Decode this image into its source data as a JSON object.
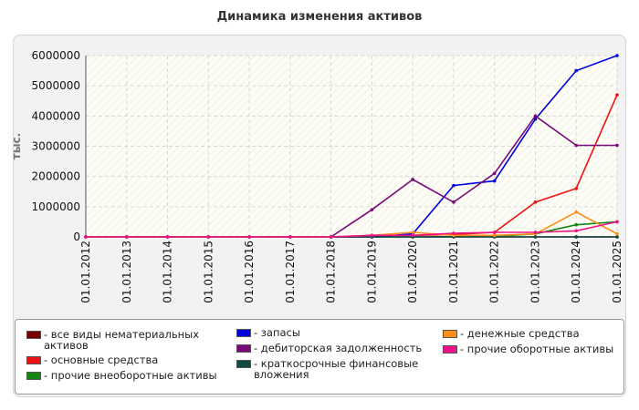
{
  "chart_data": {
    "type": "line",
    "title": "Динамика изменения активов",
    "ylabel": "тыс.",
    "xlabel": "",
    "x": [
      "01.01.2012",
      "01.01.2013",
      "01.01.2014",
      "01.01.2015",
      "01.01.2016",
      "01.01.2017",
      "01.01.2018",
      "01.01.2019",
      "01.01.2020",
      "01.01.2021",
      "01.01.2022",
      "01.01.2023",
      "01.01.2024",
      "01.01.2025"
    ],
    "ylim": [
      0,
      6000000
    ],
    "yticks": [
      "0",
      "1000000",
      "2000000",
      "3000000",
      "4000000",
      "5000000",
      "6000000"
    ],
    "grid": true,
    "legend_position": "bottom",
    "series": [
      {
        "name": "- все виды нематериальных активов",
        "color": "#7a0000",
        "values": [
          0,
          0,
          0,
          0,
          0,
          0,
          0,
          0,
          0,
          0,
          0,
          0,
          0,
          0
        ]
      },
      {
        "name": "- основные средства",
        "color": "#ee1111",
        "values": [
          0,
          0,
          0,
          0,
          0,
          0,
          0,
          30000,
          50000,
          80000,
          150000,
          1150000,
          1600000,
          4700000
        ]
      },
      {
        "name": "- прочие внеоборотные активы",
        "color": "#118811",
        "values": [
          0,
          0,
          0,
          0,
          0,
          0,
          0,
          0,
          0,
          10000,
          20000,
          100000,
          400000,
          500000
        ]
      },
      {
        "name": "- запасы",
        "color": "#0000dd",
        "values": [
          0,
          0,
          0,
          0,
          0,
          0,
          0,
          0,
          100000,
          1700000,
          1850000,
          3900000,
          5500000,
          6000000
        ]
      },
      {
        "name": "- дебиторская задолженность",
        "color": "#7a0a7a",
        "values": [
          0,
          0,
          0,
          0,
          0,
          0,
          0,
          900000,
          1900000,
          1150000,
          2100000,
          4000000,
          3030000,
          3030000
        ]
      },
      {
        "name": "- краткосрочные финансовые вложения",
        "color": "#0f4a45",
        "values": [
          0,
          0,
          0,
          0,
          0,
          0,
          0,
          0,
          0,
          0,
          0,
          0,
          0,
          0
        ]
      },
      {
        "name": "- денежные средства",
        "color": "#ff8c1a",
        "values": [
          0,
          0,
          0,
          0,
          0,
          0,
          0,
          50000,
          150000,
          50000,
          50000,
          100000,
          820000,
          100000
        ]
      },
      {
        "name": "- прочие оборотные активы",
        "color": "#ee1188",
        "values": [
          0,
          0,
          0,
          0,
          0,
          0,
          0,
          50000,
          50000,
          120000,
          150000,
          150000,
          200000,
          500000
        ]
      }
    ]
  }
}
